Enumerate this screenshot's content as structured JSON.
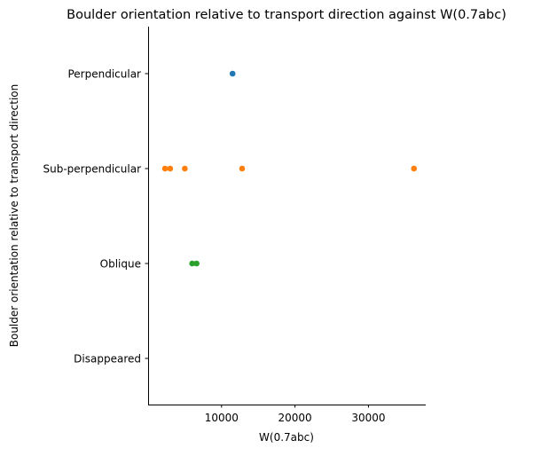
{
  "chart_data": {
    "type": "scatter",
    "title": "Boulder orientation relative to transport direction against W(0.7abc)",
    "xlabel": "W(0.7abc)",
    "ylabel": "Boulder orientation relative to transport direction",
    "categories": [
      "Perpendicular",
      "Sub-perpendicular",
      "Oblique",
      "Disappeared"
    ],
    "xlim": [
      0,
      37800
    ],
    "xticks": [
      10000,
      20000,
      30000
    ],
    "xtick_labels": [
      "10000",
      "20000",
      "30000"
    ],
    "grid": false,
    "legend": "none",
    "colors": {
      "Perpendicular": "#1f77b4",
      "Sub-perpendicular": "#ff7f0e",
      "Oblique": "#2ca02c",
      "Disappeared": "#d62728"
    },
    "points": [
      {
        "category": "Perpendicular",
        "x": 11500
      },
      {
        "category": "Sub-perpendicular",
        "x": 2300
      },
      {
        "category": "Sub-perpendicular",
        "x": 3000
      },
      {
        "category": "Sub-perpendicular",
        "x": 5000
      },
      {
        "category": "Sub-perpendicular",
        "x": 12800
      },
      {
        "category": "Sub-perpendicular",
        "x": 36200
      },
      {
        "category": "Oblique",
        "x": 6000
      },
      {
        "category": "Oblique",
        "x": 6600
      }
    ]
  }
}
